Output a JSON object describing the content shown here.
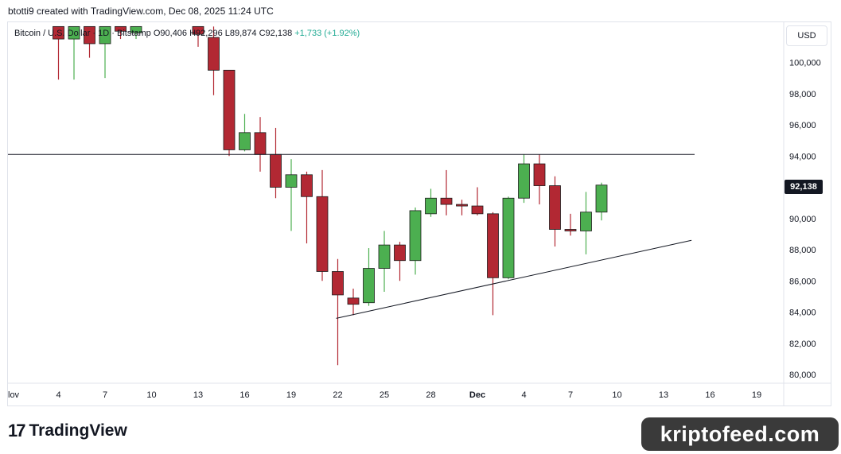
{
  "header": {
    "title": "btotti9 created with TradingView.com, Dec 08, 2025 11:24 UTC"
  },
  "legend": {
    "symbol": "Bitcoin / U.S. Dollar · 1D · Bitstamp",
    "open": "O90,406",
    "high": "H92,296",
    "low": "L89,874",
    "close": "C92,138",
    "change": "+1,733 (+1.92%)"
  },
  "currency_button": "USD",
  "last_price_label": "92,138",
  "branding": {
    "logo_mark": "17",
    "logo_word": "TradingView",
    "watermark": "kriptofeed.com"
  },
  "colors": {
    "up": "#4caf50",
    "down": "#b22833",
    "line": "#131722"
  },
  "chart_data": {
    "type": "candlestick",
    "title": "Bitcoin / U.S. Dollar · 1D · Bitstamp",
    "x_tick_labels": [
      "lov",
      "4",
      "7",
      "10",
      "13",
      "16",
      "19",
      "22",
      "25",
      "28",
      "Dec",
      "4",
      "7",
      "10",
      "13",
      "16",
      "19"
    ],
    "y_tick_labels": [
      "100,000",
      "98,000",
      "96,000",
      "94,000",
      "92,000",
      "90,000",
      "88,000",
      "86,000",
      "84,000",
      "82,000",
      "80,000"
    ],
    "y_ticks": [
      100000,
      98000,
      96000,
      94000,
      92000,
      90000,
      88000,
      86000,
      84000,
      82000,
      80000
    ],
    "ylim": [
      79500,
      102200
    ],
    "day_range": [
      0,
      49
    ],
    "candles": [
      {
        "day": 3,
        "open": 102300,
        "high": 102300,
        "low": 98900,
        "close": 101500
      },
      {
        "day": 4,
        "open": 101500,
        "high": 102300,
        "low": 98900,
        "close": 102300
      },
      {
        "day": 5,
        "open": 102300,
        "high": 102300,
        "low": 100300,
        "close": 101200
      },
      {
        "day": 6,
        "open": 101200,
        "high": 102300,
        "low": 99000,
        "close": 102300
      },
      {
        "day": 7,
        "open": 102300,
        "high": 102300,
        "low": 101500,
        "close": 102000
      },
      {
        "day": 8,
        "open": 101900,
        "high": 102300,
        "low": 101500,
        "close": 102300
      },
      {
        "day": 12,
        "open": 102300,
        "high": 102300,
        "low": 101000,
        "close": 101800
      },
      {
        "day": 13,
        "open": 101600,
        "high": 102300,
        "low": 97900,
        "close": 99500
      },
      {
        "day": 14,
        "open": 99500,
        "high": 99500,
        "low": 94000,
        "close": 94400
      },
      {
        "day": 15,
        "open": 94400,
        "high": 96700,
        "low": 94300,
        "close": 95500
      },
      {
        "day": 16,
        "open": 95500,
        "high": 96500,
        "low": 93000,
        "close": 94100
      },
      {
        "day": 17,
        "open": 94100,
        "high": 95800,
        "low": 91300,
        "close": 92000
      },
      {
        "day": 18,
        "open": 92000,
        "high": 93800,
        "low": 89200,
        "close": 92800
      },
      {
        "day": 19,
        "open": 92800,
        "high": 93000,
        "low": 88400,
        "close": 91400
      },
      {
        "day": 20,
        "open": 91400,
        "high": 93100,
        "low": 86000,
        "close": 86600
      },
      {
        "day": 21,
        "open": 86600,
        "high": 87400,
        "low": 80600,
        "close": 85100
      },
      {
        "day": 22,
        "open": 84900,
        "high": 85500,
        "low": 83800,
        "close": 84500
      },
      {
        "day": 23,
        "open": 84600,
        "high": 88100,
        "low": 84400,
        "close": 86800
      },
      {
        "day": 24,
        "open": 86800,
        "high": 89200,
        "low": 85300,
        "close": 88300
      },
      {
        "day": 25,
        "open": 88300,
        "high": 88500,
        "low": 86000,
        "close": 87300
      },
      {
        "day": 26,
        "open": 87300,
        "high": 90700,
        "low": 86400,
        "close": 90500
      },
      {
        "day": 27,
        "open": 90300,
        "high": 91900,
        "low": 90100,
        "close": 91300
      },
      {
        "day": 28,
        "open": 91300,
        "high": 93100,
        "low": 90200,
        "close": 90900
      },
      {
        "day": 29,
        "open": 90900,
        "high": 91200,
        "low": 90200,
        "close": 90800
      },
      {
        "day": 30,
        "open": 90800,
        "high": 92000,
        "low": 90200,
        "close": 90300
      },
      {
        "day": 31,
        "open": 90300,
        "high": 90400,
        "low": 83800,
        "close": 86200
      },
      {
        "day": 32,
        "open": 86200,
        "high": 91400,
        "low": 86100,
        "close": 91300
      },
      {
        "day": 33,
        "open": 91300,
        "high": 94100,
        "low": 91000,
        "close": 93500
      },
      {
        "day": 34,
        "open": 93500,
        "high": 94100,
        "low": 90900,
        "close": 92100
      },
      {
        "day": 35,
        "open": 92100,
        "high": 92700,
        "low": 88200,
        "close": 89300
      },
      {
        "day": 36,
        "open": 89300,
        "high": 90300,
        "low": 88900,
        "close": 89200
      },
      {
        "day": 37,
        "open": 89200,
        "high": 91700,
        "low": 87700,
        "close": 90406
      },
      {
        "day": 38,
        "open": 90406,
        "high": 92296,
        "low": 89874,
        "close": 92138
      }
    ],
    "lines": [
      {
        "kind": "horizontal",
        "price": 94100,
        "from_day": 0,
        "to_day": 44
      },
      {
        "kind": "trendline",
        "from_day": 20.9,
        "from_price": 83600,
        "to_day": 43.8,
        "to_price": 88600
      }
    ],
    "last_price": 92138,
    "grid": false
  }
}
